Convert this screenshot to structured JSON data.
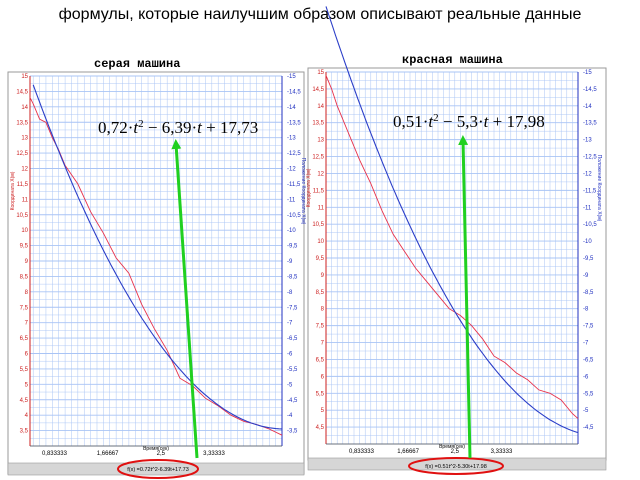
{
  "page_title": "формулы, которые наилучшим образом описывают реальные данные",
  "colors": {
    "grid": "#a9c4f5",
    "red_series": "#e8324a",
    "blue_series": "#2b3ec8",
    "left_axis": "#cc1f1f",
    "right_axis": "#2030c0",
    "arrow": "#20d020",
    "ellipse": "#e01010",
    "frame": "#9a9a9a",
    "statusbar": "#d6d6d6"
  },
  "chart_data": [
    {
      "type": "line",
      "title": "серая машина",
      "formula": {
        "a": "0,72",
        "b": "6,39",
        "c": "17,73"
      },
      "status_text": "f(x) =0.72t^2-6.39t+17.73",
      "xlabel": "Время(сек)",
      "ylabel_left": "Координата X(м)",
      "ylabel_right": "Положение Координата X(м)",
      "xlim": [
        0.45,
        4.4
      ],
      "ylim": [
        3.0,
        15.0
      ],
      "x_ticks": [
        "0,833333",
        "1,66667",
        "2,5",
        "3,33333"
      ],
      "y_ticks": [
        "3,5",
        "4",
        "4,5",
        "5",
        "5,5",
        "6",
        "6,5",
        "7",
        "7,5",
        "8",
        "8,5",
        "9",
        "9,5",
        "10",
        "10,5",
        "11",
        "11,5",
        "12",
        "12,5",
        "13",
        "13,5",
        "14",
        "14,5",
        "15"
      ],
      "series": [
        {
          "role": "measured",
          "color": "red",
          "x": [
            0.45,
            0.5,
            0.6,
            0.7,
            0.8,
            0.9,
            1.0,
            1.2,
            1.4,
            1.6,
            1.8,
            2.0,
            2.2,
            2.4,
            2.6,
            2.8,
            3.0,
            3.2,
            3.4,
            3.6,
            3.8,
            4.0,
            4.2,
            4.4
          ],
          "y": [
            14.3,
            14.1,
            13.6,
            13.5,
            13.0,
            12.6,
            12.1,
            11.5,
            10.6,
            9.9,
            9.1,
            8.6,
            7.6,
            6.8,
            6.1,
            5.2,
            4.95,
            4.55,
            4.3,
            4.0,
            3.8,
            3.7,
            3.55,
            3.35
          ]
        },
        {
          "role": "fit",
          "color": "blue",
          "a": 0.72,
          "b": -6.39,
          "c": 17.73,
          "x_from": 0.5,
          "x_to": 4.4
        }
      ]
    },
    {
      "type": "line",
      "title": "красная машина",
      "formula": {
        "a": "0,51",
        "b": "5,3",
        "c": "17,98"
      },
      "status_text": "f(x) =0.51t^2-5.30t+17.98",
      "xlabel": "Время(сек)",
      "ylabel_left": "Координата X(м)",
      "ylabel_right": "Положение Координата X(м)",
      "xlim": [
        0.2,
        4.7
      ],
      "ylim": [
        4.0,
        15.0
      ],
      "x_ticks": [
        "0,833333",
        "1,66667",
        "2,5",
        "3,33333"
      ],
      "y_ticks": [
        "4,5",
        "5",
        "5,5",
        "6",
        "6,5",
        "7",
        "7,5",
        "8",
        "8,5",
        "9",
        "9,5",
        "10",
        "10,5",
        "11",
        "11,5",
        "12",
        "12,5",
        "13",
        "13,5",
        "14",
        "14,5",
        "15"
      ],
      "series": [
        {
          "role": "measured",
          "color": "red",
          "x": [
            0.2,
            0.3,
            0.4,
            0.6,
            0.8,
            1.0,
            1.2,
            1.4,
            1.6,
            1.8,
            2.0,
            2.2,
            2.4,
            2.6,
            2.8,
            3.0,
            3.2,
            3.4,
            3.6,
            3.8,
            4.0,
            4.2,
            4.4,
            4.6,
            4.7
          ],
          "y": [
            14.9,
            14.5,
            14.0,
            13.2,
            12.4,
            11.7,
            10.9,
            10.2,
            9.7,
            9.2,
            8.8,
            8.4,
            8.0,
            7.8,
            7.5,
            7.1,
            6.6,
            6.4,
            6.1,
            5.9,
            5.6,
            5.5,
            5.3,
            4.9,
            4.75
          ]
        },
        {
          "role": "fit",
          "color": "blue",
          "a": 0.51,
          "b": -5.3,
          "c": 17.98,
          "x_from": 0.2,
          "x_to": 4.7
        }
      ]
    }
  ]
}
